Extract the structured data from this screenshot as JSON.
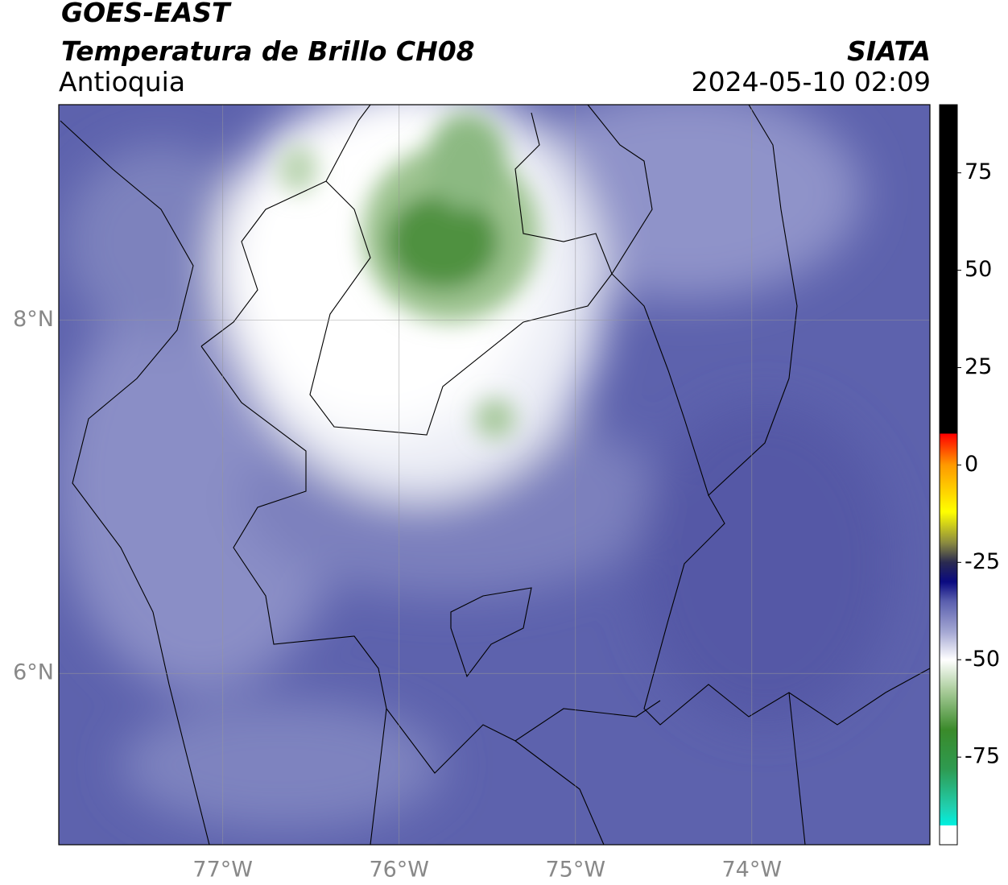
{
  "header": {
    "title": "GOES-EAST",
    "subtitle": "Temperatura de Brillo CH08",
    "region": "Antioquia",
    "source": "SIATA",
    "datetime": "2024-05-10 02:09"
  },
  "map": {
    "xlim": [
      -77.93,
      -72.99
    ],
    "ylim": [
      5.03,
      9.22
    ],
    "xticks": [
      {
        "value": -77,
        "label": "77°W"
      },
      {
        "value": -76,
        "label": "76°W"
      },
      {
        "value": -75,
        "label": "75°W"
      },
      {
        "value": -74,
        "label": "74°W"
      }
    ],
    "yticks": [
      {
        "value": 8,
        "label": "8°N"
      },
      {
        "value": 6,
        "label": "6°N"
      }
    ]
  },
  "colorbar": {
    "clim": [
      -97.5,
      92.5
    ],
    "ticks": [
      75,
      50,
      25,
      0,
      -25,
      -50,
      -75
    ],
    "stops": [
      {
        "value": -97.5,
        "color": "#ffffff"
      },
      {
        "value": -92.6,
        "color": "#ffffff"
      },
      {
        "value": -92.5,
        "color": "#00f0e0"
      },
      {
        "value": -88,
        "color": "#20d0b0"
      },
      {
        "value": -78,
        "color": "#2e9a50"
      },
      {
        "value": -68,
        "color": "#3a8a2a"
      },
      {
        "value": -58,
        "color": "#a9cc9a"
      },
      {
        "value": -50,
        "color": "#ffffff"
      },
      {
        "value": -43,
        "color": "#a6a9d4"
      },
      {
        "value": -35,
        "color": "#5a5fae"
      },
      {
        "value": -30,
        "color": "#0a0a80"
      },
      {
        "value": -25,
        "color": "#2a2a50"
      },
      {
        "value": -20,
        "color": "#8a8a40"
      },
      {
        "value": -12,
        "color": "#ffff00"
      },
      {
        "value": 0,
        "color": "#ff9900"
      },
      {
        "value": 8,
        "color": "#ff0000"
      },
      {
        "value": 8.1,
        "color": "#000000"
      },
      {
        "value": 92.5,
        "color": "#000000"
      }
    ]
  }
}
